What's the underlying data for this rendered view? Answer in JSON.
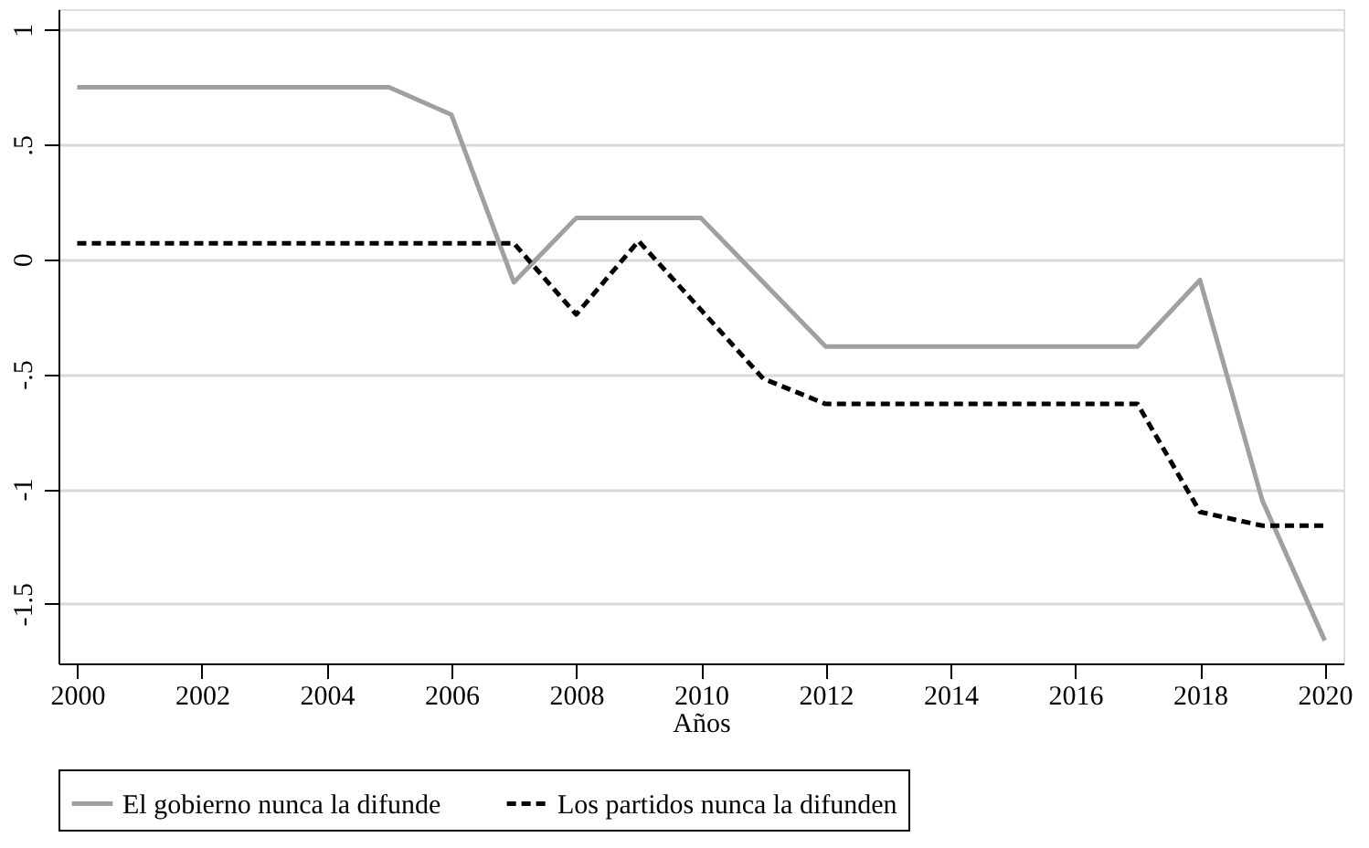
{
  "chart_data": {
    "type": "line",
    "xlabel": "Años",
    "x": [
      2000,
      2001,
      2002,
      2003,
      2004,
      2005,
      2006,
      2007,
      2008,
      2009,
      2010,
      2011,
      2012,
      2013,
      2014,
      2015,
      2016,
      2017,
      2018,
      2019,
      2020
    ],
    "series": [
      {
        "name": "El gobierno nunca la difunde",
        "color": "#a0a0a0",
        "line_style": "solid",
        "values": [
          0.75,
          0.75,
          0.75,
          0.75,
          0.75,
          0.75,
          0.63,
          -0.1,
          0.18,
          0.18,
          0.18,
          -0.1,
          -0.38,
          -0.38,
          -0.38,
          -0.38,
          -0.38,
          -0.38,
          -0.09,
          -1.05,
          -1.66
        ]
      },
      {
        "name": "Los partidos nunca la difunden",
        "color": "#000000",
        "line_style": "dashed",
        "values": [
          0.07,
          0.07,
          0.07,
          0.07,
          0.07,
          0.07,
          0.07,
          0.07,
          -0.24,
          0.08,
          -0.22,
          -0.52,
          -0.63,
          -0.63,
          -0.63,
          -0.63,
          -0.63,
          -0.63,
          -1.1,
          -1.16,
          -1.16
        ]
      }
    ],
    "xlim": [
      1999.7,
      2020.3
    ],
    "xticks": [
      2000,
      2002,
      2004,
      2006,
      2008,
      2010,
      2012,
      2014,
      2016,
      2018,
      2020
    ],
    "ylim": [
      -1.76,
      1.09
    ],
    "yticks": [
      {
        "value": -1.5,
        "label": "-1.5"
      },
      -1,
      {
        "value": -0.5,
        "label": "-.5"
      },
      0,
      {
        "value": 0.5,
        "label": ".5"
      },
      1
    ],
    "grid": "y",
    "legend": "bottom",
    "marker": "none"
  }
}
